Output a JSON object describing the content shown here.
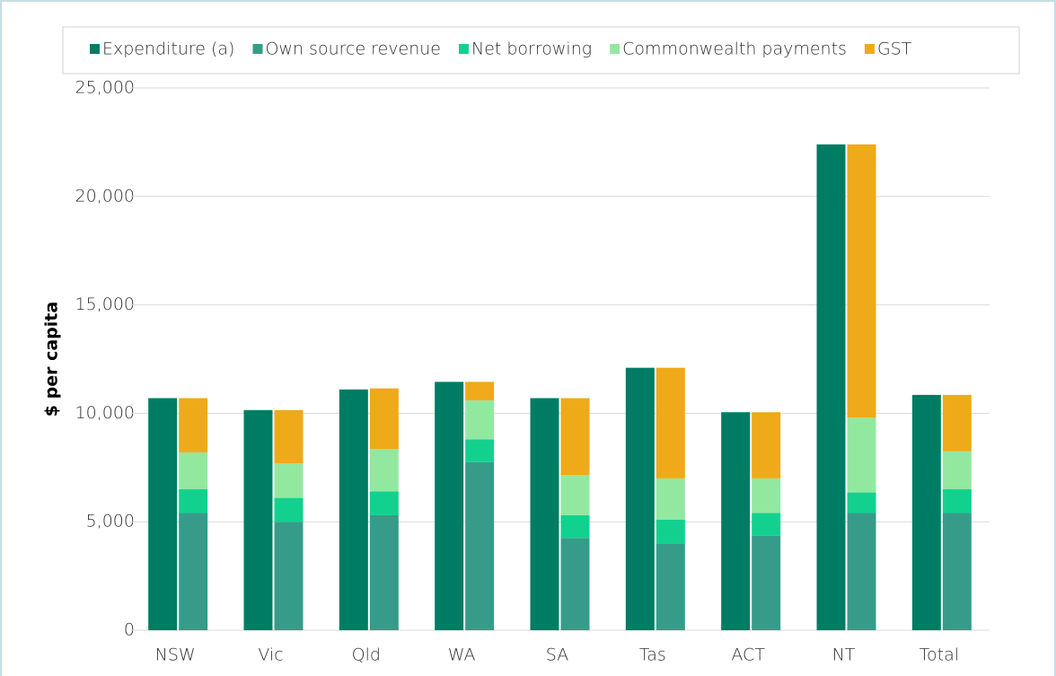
{
  "chart_data": {
    "type": "bar",
    "y_label": "$ per capita",
    "categories": [
      "NSW",
      "Vic",
      "Qld",
      "WA",
      "SA",
      "Tas",
      "ACT",
      "NT",
      "Total"
    ],
    "series": [
      {
        "name": "Expenditure (a)",
        "color": "#007c64",
        "values": [
          10700,
          10150,
          11100,
          11450,
          10700,
          12100,
          10050,
          22400,
          10850
        ]
      },
      {
        "name": "Own source revenue",
        "color": "#369c89",
        "values": [
          5400,
          5000,
          5300,
          7750,
          4250,
          4000,
          4350,
          5400,
          5400
        ]
      },
      {
        "name": "Net borrowing",
        "color": "#12d18e",
        "values": [
          1100,
          1100,
          1100,
          1050,
          1050,
          1100,
          1050,
          950,
          1100
        ]
      },
      {
        "name": "Commonwealth payments",
        "color": "#93e8a0",
        "values": [
          1700,
          1600,
          1950,
          1800,
          1850,
          1900,
          1600,
          3450,
          1750
        ]
      },
      {
        "name": "GST",
        "color": "#eeaa19",
        "values": [
          2500,
          2450,
          2800,
          850,
          3550,
          5100,
          3050,
          12600,
          2600
        ]
      }
    ],
    "ylim": [
      0,
      25000
    ],
    "yticks": [
      0,
      {
        "value": 5000,
        "label": "5,000"
      },
      {
        "value": 10000,
        "label": "10,000"
      },
      {
        "value": 15000,
        "label": "15,000"
      },
      {
        "value": 20000,
        "label": "20,000"
      },
      {
        "value": 25000,
        "label": "25,000"
      }
    ],
    "grid": true
  }
}
